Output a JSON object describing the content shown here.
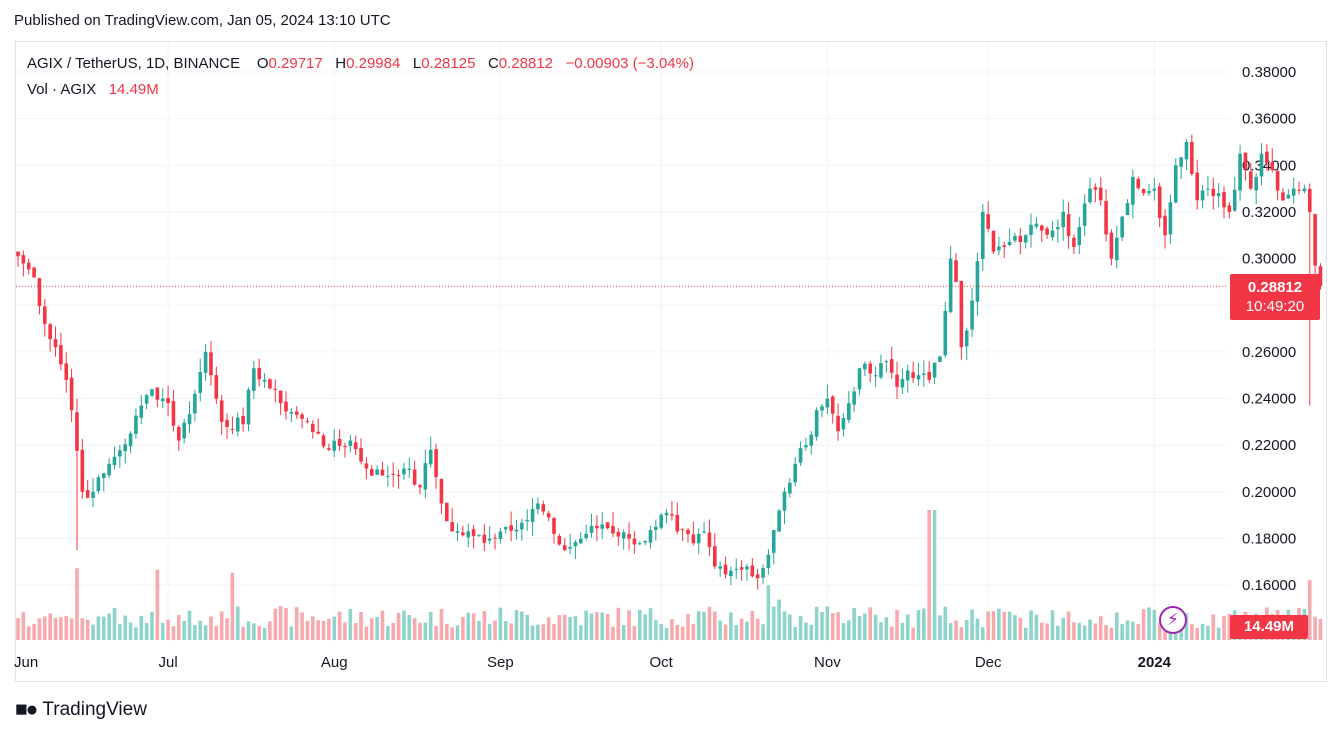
{
  "header": {
    "published": "Published on TradingView.com, Jan 05, 2024 13:10 UTC"
  },
  "legend": {
    "symbol": "AGIX / TetherUS, 1D, BINANCE",
    "o_label": "O",
    "o_value": "0.29717",
    "h_label": "H",
    "h_value": "0.29984",
    "l_label": "L",
    "l_value": "0.28125",
    "c_label": "C",
    "c_value": "0.28812",
    "change": "−0.00903 (−3.04%)",
    "vol_label": "Vol · AGIX",
    "vol_value": "14.49M"
  },
  "badges": {
    "price": "0.28812",
    "countdown": "10:49:20",
    "volume": "14.49M"
  },
  "footer": {
    "brand": "TradingView",
    "logo": "tradingview-logo-icon"
  },
  "colors": {
    "up": "#26a69a",
    "down": "#f23645",
    "up_vol": "#8fd4cb",
    "down_vol": "#f7a9ae",
    "grid": "#f0f3fa"
  },
  "chart_data": {
    "type": "candlestick",
    "ylim": [
      0.155,
      0.385
    ],
    "y_ticks": [
      "0.38000",
      "0.36000",
      "0.34000",
      "0.32000",
      "0.30000",
      "0.28000",
      "0.26000",
      "0.24000",
      "0.22000",
      "0.20000",
      "0.18000",
      "0.16000"
    ],
    "x_ticks": [
      "Jun",
      "Jul",
      "Aug",
      "Sep",
      "Oct",
      "Nov",
      "Dec",
      "2024"
    ],
    "x_tick_days": [
      -2,
      28,
      59,
      90,
      120,
      151,
      181,
      212
    ],
    "start_date": "2023-06-03",
    "last_close": 0.28812,
    "close_keypoints": [
      [
        0,
        0.301
      ],
      [
        3,
        0.292
      ],
      [
        5,
        0.272
      ],
      [
        7,
        0.262
      ],
      [
        9,
        0.248
      ],
      [
        10,
        0.235
      ],
      [
        12,
        0.2
      ],
      [
        14,
        0.2
      ],
      [
        16,
        0.208
      ],
      [
        18,
        0.215
      ],
      [
        21,
        0.225
      ],
      [
        23,
        0.237
      ],
      [
        25,
        0.244
      ],
      [
        28,
        0.238
      ],
      [
        30,
        0.222
      ],
      [
        33,
        0.242
      ],
      [
        35,
        0.26
      ],
      [
        36,
        0.25
      ],
      [
        38,
        0.23
      ],
      [
        42,
        0.229
      ],
      [
        44,
        0.253
      ],
      [
        46,
        0.248
      ],
      [
        49,
        0.238
      ],
      [
        52,
        0.233
      ],
      [
        56,
        0.225
      ],
      [
        58,
        0.218
      ],
      [
        62,
        0.222
      ],
      [
        65,
        0.21
      ],
      [
        68,
        0.207
      ],
      [
        72,
        0.21
      ],
      [
        75,
        0.202
      ],
      [
        77,
        0.218
      ],
      [
        79,
        0.195
      ],
      [
        81,
        0.183
      ],
      [
        85,
        0.181
      ],
      [
        88,
        0.18
      ],
      [
        91,
        0.185
      ],
      [
        95,
        0.188
      ],
      [
        97,
        0.195
      ],
      [
        100,
        0.182
      ],
      [
        102,
        0.175
      ],
      [
        106,
        0.182
      ],
      [
        109,
        0.186
      ],
      [
        114,
        0.18
      ],
      [
        117,
        0.179
      ],
      [
        119,
        0.185
      ],
      [
        121,
        0.191
      ],
      [
        123,
        0.183
      ],
      [
        126,
        0.178
      ],
      [
        128,
        0.183
      ],
      [
        130,
        0.168
      ],
      [
        134,
        0.167
      ],
      [
        136,
        0.168
      ],
      [
        138,
        0.163
      ],
      [
        140,
        0.173
      ],
      [
        142,
        0.192
      ],
      [
        145,
        0.212
      ],
      [
        147,
        0.22
      ],
      [
        149,
        0.235
      ],
      [
        151,
        0.24
      ],
      [
        153,
        0.226
      ],
      [
        155,
        0.238
      ],
      [
        157,
        0.253
      ],
      [
        160,
        0.25
      ],
      [
        162,
        0.256
      ],
      [
        164,
        0.245
      ],
      [
        166,
        0.252
      ],
      [
        168,
        0.25
      ],
      [
        170,
        0.248
      ],
      [
        172,
        0.258
      ],
      [
        174,
        0.3
      ],
      [
        175,
        0.29
      ],
      [
        176,
        0.262
      ],
      [
        178,
        0.282
      ],
      [
        180,
        0.32
      ],
      [
        182,
        0.303
      ],
      [
        184,
        0.305
      ],
      [
        188,
        0.31
      ],
      [
        190,
        0.315
      ],
      [
        193,
        0.312
      ],
      [
        195,
        0.32
      ],
      [
        197,
        0.305
      ],
      [
        200,
        0.33
      ],
      [
        202,
        0.325
      ],
      [
        204,
        0.3
      ],
      [
        206,
        0.318
      ],
      [
        208,
        0.335
      ],
      [
        210,
        0.328
      ],
      [
        212,
        0.33
      ],
      [
        214,
        0.31
      ],
      [
        216,
        0.34
      ],
      [
        218,
        0.35
      ],
      [
        220,
        0.325
      ],
      [
        222,
        0.33
      ],
      [
        224,
        0.328
      ],
      [
        226,
        0.32
      ],
      [
        228,
        0.345
      ],
      [
        230,
        0.33
      ],
      [
        232,
        0.345
      ],
      [
        234,
        0.338
      ],
      [
        236,
        0.325
      ],
      [
        238,
        0.33
      ],
      [
        240,
        0.33
      ],
      [
        241,
        0.32
      ],
      [
        242,
        0.297
      ],
      [
        243,
        0.288
      ]
    ]
  }
}
